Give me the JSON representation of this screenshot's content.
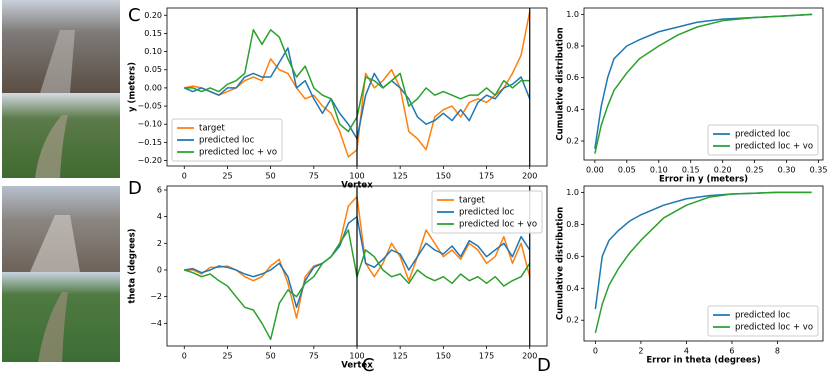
{
  "panel_labels": [
    "C",
    "D",
    "C",
    "D"
  ],
  "chart_data": [
    {
      "type": "line",
      "xlabel": "Vertex",
      "ylabel": "y (meters)",
      "x": [
        0,
        5,
        10,
        15,
        20,
        25,
        30,
        35,
        40,
        45,
        50,
        55,
        60,
        65,
        70,
        75,
        80,
        85,
        90,
        95,
        100,
        105,
        110,
        115,
        120,
        125,
        130,
        135,
        140,
        145,
        150,
        155,
        160,
        165,
        170,
        175,
        180,
        185,
        190,
        195,
        200
      ],
      "series": [
        {
          "name": "target",
          "color": "#ff7f0e",
          "values": [
            0,
            0.005,
            0,
            -0.01,
            -0.02,
            -0.01,
            0,
            0.02,
            0.03,
            0.02,
            0.08,
            0.05,
            0.04,
            0,
            -0.03,
            -0.02,
            -0.05,
            -0.07,
            -0.12,
            -0.19,
            -0.17,
            0.04,
            0,
            0.02,
            0.05,
            0,
            -0.12,
            -0.14,
            -0.17,
            -0.08,
            -0.06,
            -0.05,
            -0.08,
            -0.04,
            -0.03,
            -0.04,
            -0.02,
            0,
            0.04,
            0.09,
            0.21
          ]
        },
        {
          "name": "predicted loc",
          "color": "#1f77b4",
          "values": [
            0,
            -0.01,
            0,
            -0.01,
            -0.02,
            0,
            0,
            0.03,
            0.04,
            0.03,
            0.03,
            0.07,
            0.11,
            0,
            0.02,
            -0.03,
            -0.07,
            -0.03,
            -0.07,
            -0.1,
            -0.14,
            -0.02,
            0.04,
            0,
            0.02,
            0,
            -0.03,
            -0.08,
            -0.1,
            -0.09,
            -0.07,
            -0.09,
            -0.06,
            -0.09,
            -0.04,
            -0.02,
            -0.03,
            0,
            0.01,
            0.03,
            -0.03
          ]
        },
        {
          "name": "predicted loc + vo",
          "color": "#2ca02c",
          "values": [
            0,
            0,
            -0.01,
            0,
            -0.01,
            0.01,
            0.02,
            0.04,
            0.16,
            0.12,
            0.16,
            0.14,
            0.08,
            0.03,
            0.06,
            0,
            -0.02,
            -0.03,
            -0.1,
            -0.12,
            -0.08,
            0.03,
            0.02,
            0,
            0.02,
            0.04,
            -0.05,
            -0.03,
            0,
            -0.02,
            -0.01,
            -0.02,
            -0.03,
            -0.02,
            -0.02,
            0,
            -0.02,
            0.02,
            0,
            0.02,
            0.02
          ]
        }
      ],
      "xlim": [
        -10,
        210
      ],
      "xticks": [
        0,
        25,
        50,
        75,
        100,
        125,
        150,
        175,
        200
      ],
      "ylim": [
        -0.215,
        0.22
      ],
      "yticks": [
        {
          "value": -0.2,
          "label": "−0.20"
        },
        {
          "value": -0.15,
          "label": "−0.15"
        },
        {
          "value": -0.1,
          "label": "−0.10"
        },
        {
          "value": -0.05,
          "label": "−0.05"
        },
        {
          "value": 0,
          "label": "0.00"
        },
        {
          "value": 0.05,
          "label": "0.05"
        },
        {
          "value": 0.1,
          "label": "0.10"
        },
        {
          "value": 0.15,
          "label": "0.15"
        },
        {
          "value": 0.2,
          "label": "0.20"
        }
      ],
      "vlines": [
        100,
        200
      ],
      "legend": "lower left"
    },
    {
      "type": "line",
      "xlabel": "Vertex",
      "ylabel": "theta (degrees)",
      "x": [
        0,
        5,
        10,
        15,
        20,
        25,
        30,
        35,
        40,
        45,
        50,
        55,
        60,
        65,
        70,
        75,
        80,
        85,
        90,
        95,
        100,
        105,
        110,
        115,
        120,
        125,
        130,
        135,
        140,
        145,
        150,
        155,
        160,
        165,
        170,
        175,
        180,
        185,
        190,
        195,
        200
      ],
      "series": [
        {
          "name": "target",
          "color": "#ff7f0e",
          "values": [
            0,
            0,
            -0.3,
            0.2,
            0.2,
            0.3,
            0,
            -0.5,
            -0.8,
            -0.5,
            0.3,
            0.8,
            -1.0,
            -3.6,
            -0.5,
            0.3,
            0.5,
            1.0,
            2.0,
            4.8,
            5.5,
            0.5,
            -0.5,
            0.5,
            2.0,
            1.0,
            -0.8,
            1.0,
            3.0,
            2.0,
            1.0,
            1.5,
            0.8,
            2.0,
            1.5,
            0.5,
            1.0,
            2.5,
            0.5,
            2.0,
            -0.5
          ]
        },
        {
          "name": "predicted loc",
          "color": "#1f77b4",
          "values": [
            0,
            0.1,
            -0.2,
            0,
            0.3,
            0.2,
            0,
            -0.3,
            -0.5,
            -0.3,
            0,
            0.5,
            -0.5,
            -2.8,
            -0.8,
            0.2,
            0.5,
            1.0,
            1.8,
            3.5,
            4.0,
            0.5,
            0.2,
            0.8,
            1.5,
            1.2,
            0,
            1.0,
            2.0,
            1.5,
            1.2,
            1.8,
            1.0,
            2.2,
            1.8,
            1.0,
            1.5,
            2.0,
            1.0,
            2.5,
            1.5
          ]
        },
        {
          "name": "predicted loc + vo",
          "color": "#2ca02c",
          "values": [
            0,
            -0.2,
            -0.5,
            -0.3,
            -0.8,
            -1.2,
            -2.0,
            -2.8,
            -3.0,
            -4.0,
            -5.2,
            -2.5,
            -1.5,
            -2.0,
            -1.0,
            -0.5,
            0.5,
            1.0,
            2.0,
            3.0,
            -0.5,
            1.5,
            1.0,
            0,
            -0.5,
            -0.3,
            -1.0,
            0,
            -0.5,
            -0.8,
            -0.5,
            -1.0,
            -0.3,
            -0.8,
            -0.5,
            -1.0,
            -0.5,
            -1.2,
            -0.8,
            -0.5,
            0.5
          ]
        }
      ],
      "xlim": [
        -10,
        210
      ],
      "xticks": [
        0,
        25,
        50,
        75,
        100,
        125,
        150,
        175,
        200
      ],
      "ylim": [
        -5.7,
        6.3
      ],
      "yticks": [
        {
          "value": -4,
          "label": "−4"
        },
        {
          "value": -2,
          "label": "−2"
        },
        0,
        2,
        4,
        6
      ],
      "vlines": [
        100,
        200
      ],
      "legend": "upper right"
    },
    {
      "type": "line",
      "xlabel": "Error in y (meters)",
      "ylabel": "Cumulative distribution",
      "x": [
        0,
        0.01,
        0.02,
        0.03,
        0.05,
        0.07,
        0.1,
        0.13,
        0.16,
        0.2,
        0.25,
        0.3,
        0.34
      ],
      "series": [
        {
          "name": "predicted loc",
          "color": "#1f77b4",
          "values": [
            0.15,
            0.42,
            0.6,
            0.72,
            0.8,
            0.84,
            0.89,
            0.92,
            0.95,
            0.97,
            0.98,
            0.99,
            1.0
          ]
        },
        {
          "name": "predicted loc + vo",
          "color": "#2ca02c",
          "values": [
            0.12,
            0.3,
            0.42,
            0.52,
            0.63,
            0.72,
            0.8,
            0.87,
            0.92,
            0.96,
            0.98,
            0.99,
            1.0
          ]
        }
      ],
      "xlim": [
        -0.017,
        0.357
      ],
      "xticks": [
        {
          "value": 0,
          "label": "0.00"
        },
        {
          "value": 0.05,
          "label": "0.05"
        },
        {
          "value": 0.1,
          "label": "0.10"
        },
        {
          "value": 0.15,
          "label": "0.15"
        },
        {
          "value": 0.2,
          "label": "0.20"
        },
        {
          "value": 0.25,
          "label": "0.25"
        },
        {
          "value": 0.3,
          "label": "0.30"
        },
        {
          "value": 0.35,
          "label": "0.35"
        }
      ],
      "ylim": [
        0.08,
        1.04
      ],
      "yticks": [
        0.2,
        0.4,
        0.6,
        0.8,
        {
          "value": 1,
          "label": "1.0"
        }
      ],
      "legend": "lower right"
    },
    {
      "type": "line",
      "xlabel": "Error in theta (degrees)",
      "ylabel": "Cumulative distribution",
      "x": [
        0,
        0.3,
        0.6,
        1,
        1.5,
        2,
        3,
        4,
        5,
        6,
        7,
        8,
        9.5
      ],
      "series": [
        {
          "name": "predicted loc",
          "color": "#1f77b4",
          "values": [
            0.27,
            0.6,
            0.7,
            0.76,
            0.82,
            0.86,
            0.92,
            0.96,
            0.98,
            0.99,
            0.995,
            1.0,
            1.0
          ]
        },
        {
          "name": "predicted loc + vo",
          "color": "#2ca02c",
          "values": [
            0.12,
            0.3,
            0.42,
            0.52,
            0.62,
            0.7,
            0.84,
            0.92,
            0.97,
            0.99,
            0.995,
            1.0,
            1.0
          ]
        }
      ],
      "xlim": [
        -0.5,
        10
      ],
      "xticks": [
        0,
        2,
        4,
        6,
        8
      ],
      "ylim": [
        0.07,
        1.04
      ],
      "yticks": [
        0.2,
        0.4,
        0.6,
        0.8,
        {
          "value": 1,
          "label": "1.0"
        }
      ],
      "legend": "lower right"
    }
  ]
}
